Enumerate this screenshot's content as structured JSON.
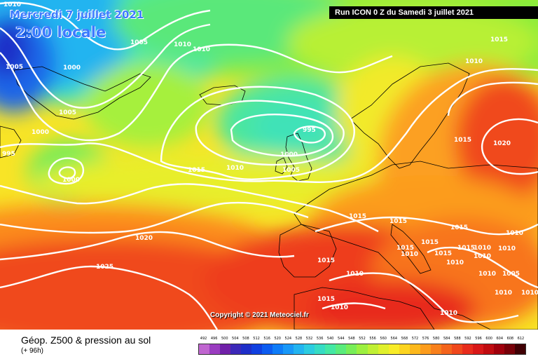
{
  "header": {
    "date": "Mercredi 7 juillet 2021",
    "hour": "2:00 locale",
    "run": "Run ICON 0 Z du Samedi 3 juillet 2021"
  },
  "copyright": "Copyright © 2021 Meteociel.fr",
  "legend": {
    "title": "Géop. Z500 & pression au sol",
    "lead": "(+ 96h)",
    "scale_values": [
      "492",
      "496",
      "500",
      "504",
      "508",
      "512",
      "516",
      "520",
      "524",
      "528",
      "532",
      "536",
      "540",
      "544",
      "548",
      "552",
      "556",
      "560",
      "564",
      "568",
      "572",
      "576",
      "580",
      "584",
      "588",
      "592",
      "596",
      "600",
      "604",
      "608",
      "612"
    ],
    "scale_colors": [
      "#c066d0",
      "#9a3cc0",
      "#7020a8",
      "#3c28b8",
      "#1e2ec8",
      "#1040e0",
      "#0c5cf0",
      "#0e7cf8",
      "#1898f8",
      "#22b4f0",
      "#2ccce0",
      "#36dcc4",
      "#44e8a4",
      "#5aec7c",
      "#78ee58",
      "#9cf040",
      "#c0f034",
      "#e0f02c",
      "#f8ec28",
      "#fcd420",
      "#fcb81c",
      "#fc9c1c",
      "#f8801c",
      "#f4641c",
      "#f0481c",
      "#e82c1c",
      "#d81818",
      "#c00c10",
      "#a0000c",
      "#780008",
      "#400004"
    ]
  },
  "isobar_labels": [
    {
      "id": "l1",
      "text": "1010"
    },
    {
      "id": "l2",
      "text": "1005"
    },
    {
      "id": "l3",
      "text": "1000"
    },
    {
      "id": "l4",
      "text": "1005"
    },
    {
      "id": "l5",
      "text": "1010"
    },
    {
      "id": "l6",
      "text": "1010"
    },
    {
      "id": "l7",
      "text": "1005"
    },
    {
      "id": "l8",
      "text": "1000"
    },
    {
      "id": "l9",
      "text": "995"
    },
    {
      "id": "l10",
      "text": "1000"
    },
    {
      "id": "l11",
      "text": "1015"
    },
    {
      "id": "l12",
      "text": "1010"
    },
    {
      "id": "l13",
      "text": "995"
    },
    {
      "id": "l14",
      "text": "1000"
    },
    {
      "id": "l15",
      "text": "1005"
    },
    {
      "id": "l16",
      "text": "1015"
    },
    {
      "id": "l17",
      "text": "1010"
    },
    {
      "id": "l18",
      "text": "1015"
    },
    {
      "id": "l19",
      "text": "1020"
    },
    {
      "id": "l20",
      "text": "1015"
    },
    {
      "id": "l21",
      "text": "1020"
    },
    {
      "id": "l22",
      "text": "1025"
    },
    {
      "id": "l23",
      "text": "1015"
    },
    {
      "id": "l24",
      "text": "1015"
    },
    {
      "id": "l25",
      "text": "1015"
    },
    {
      "id": "l26",
      "text": "1015"
    },
    {
      "id": "l27",
      "text": "1015"
    },
    {
      "id": "l28",
      "text": "1015"
    },
    {
      "id": "l29",
      "text": "1015"
    },
    {
      "id": "l30",
      "text": "1010"
    },
    {
      "id": "l31",
      "text": "1010"
    },
    {
      "id": "l32",
      "text": "1010"
    },
    {
      "id": "l33",
      "text": "1010"
    },
    {
      "id": "l34",
      "text": "1010"
    },
    {
      "id": "l35",
      "text": "1010"
    },
    {
      "id": "l36",
      "text": "1010"
    },
    {
      "id": "l37",
      "text": "1010"
    },
    {
      "id": "l38",
      "text": "1005"
    },
    {
      "id": "l39",
      "text": "1010"
    },
    {
      "id": "l40",
      "text": "1015"
    },
    {
      "id": "l41",
      "text": "1010"
    },
    {
      "id": "l42",
      "text": "1010"
    },
    {
      "id": "l43",
      "text": "1010"
    }
  ]
}
